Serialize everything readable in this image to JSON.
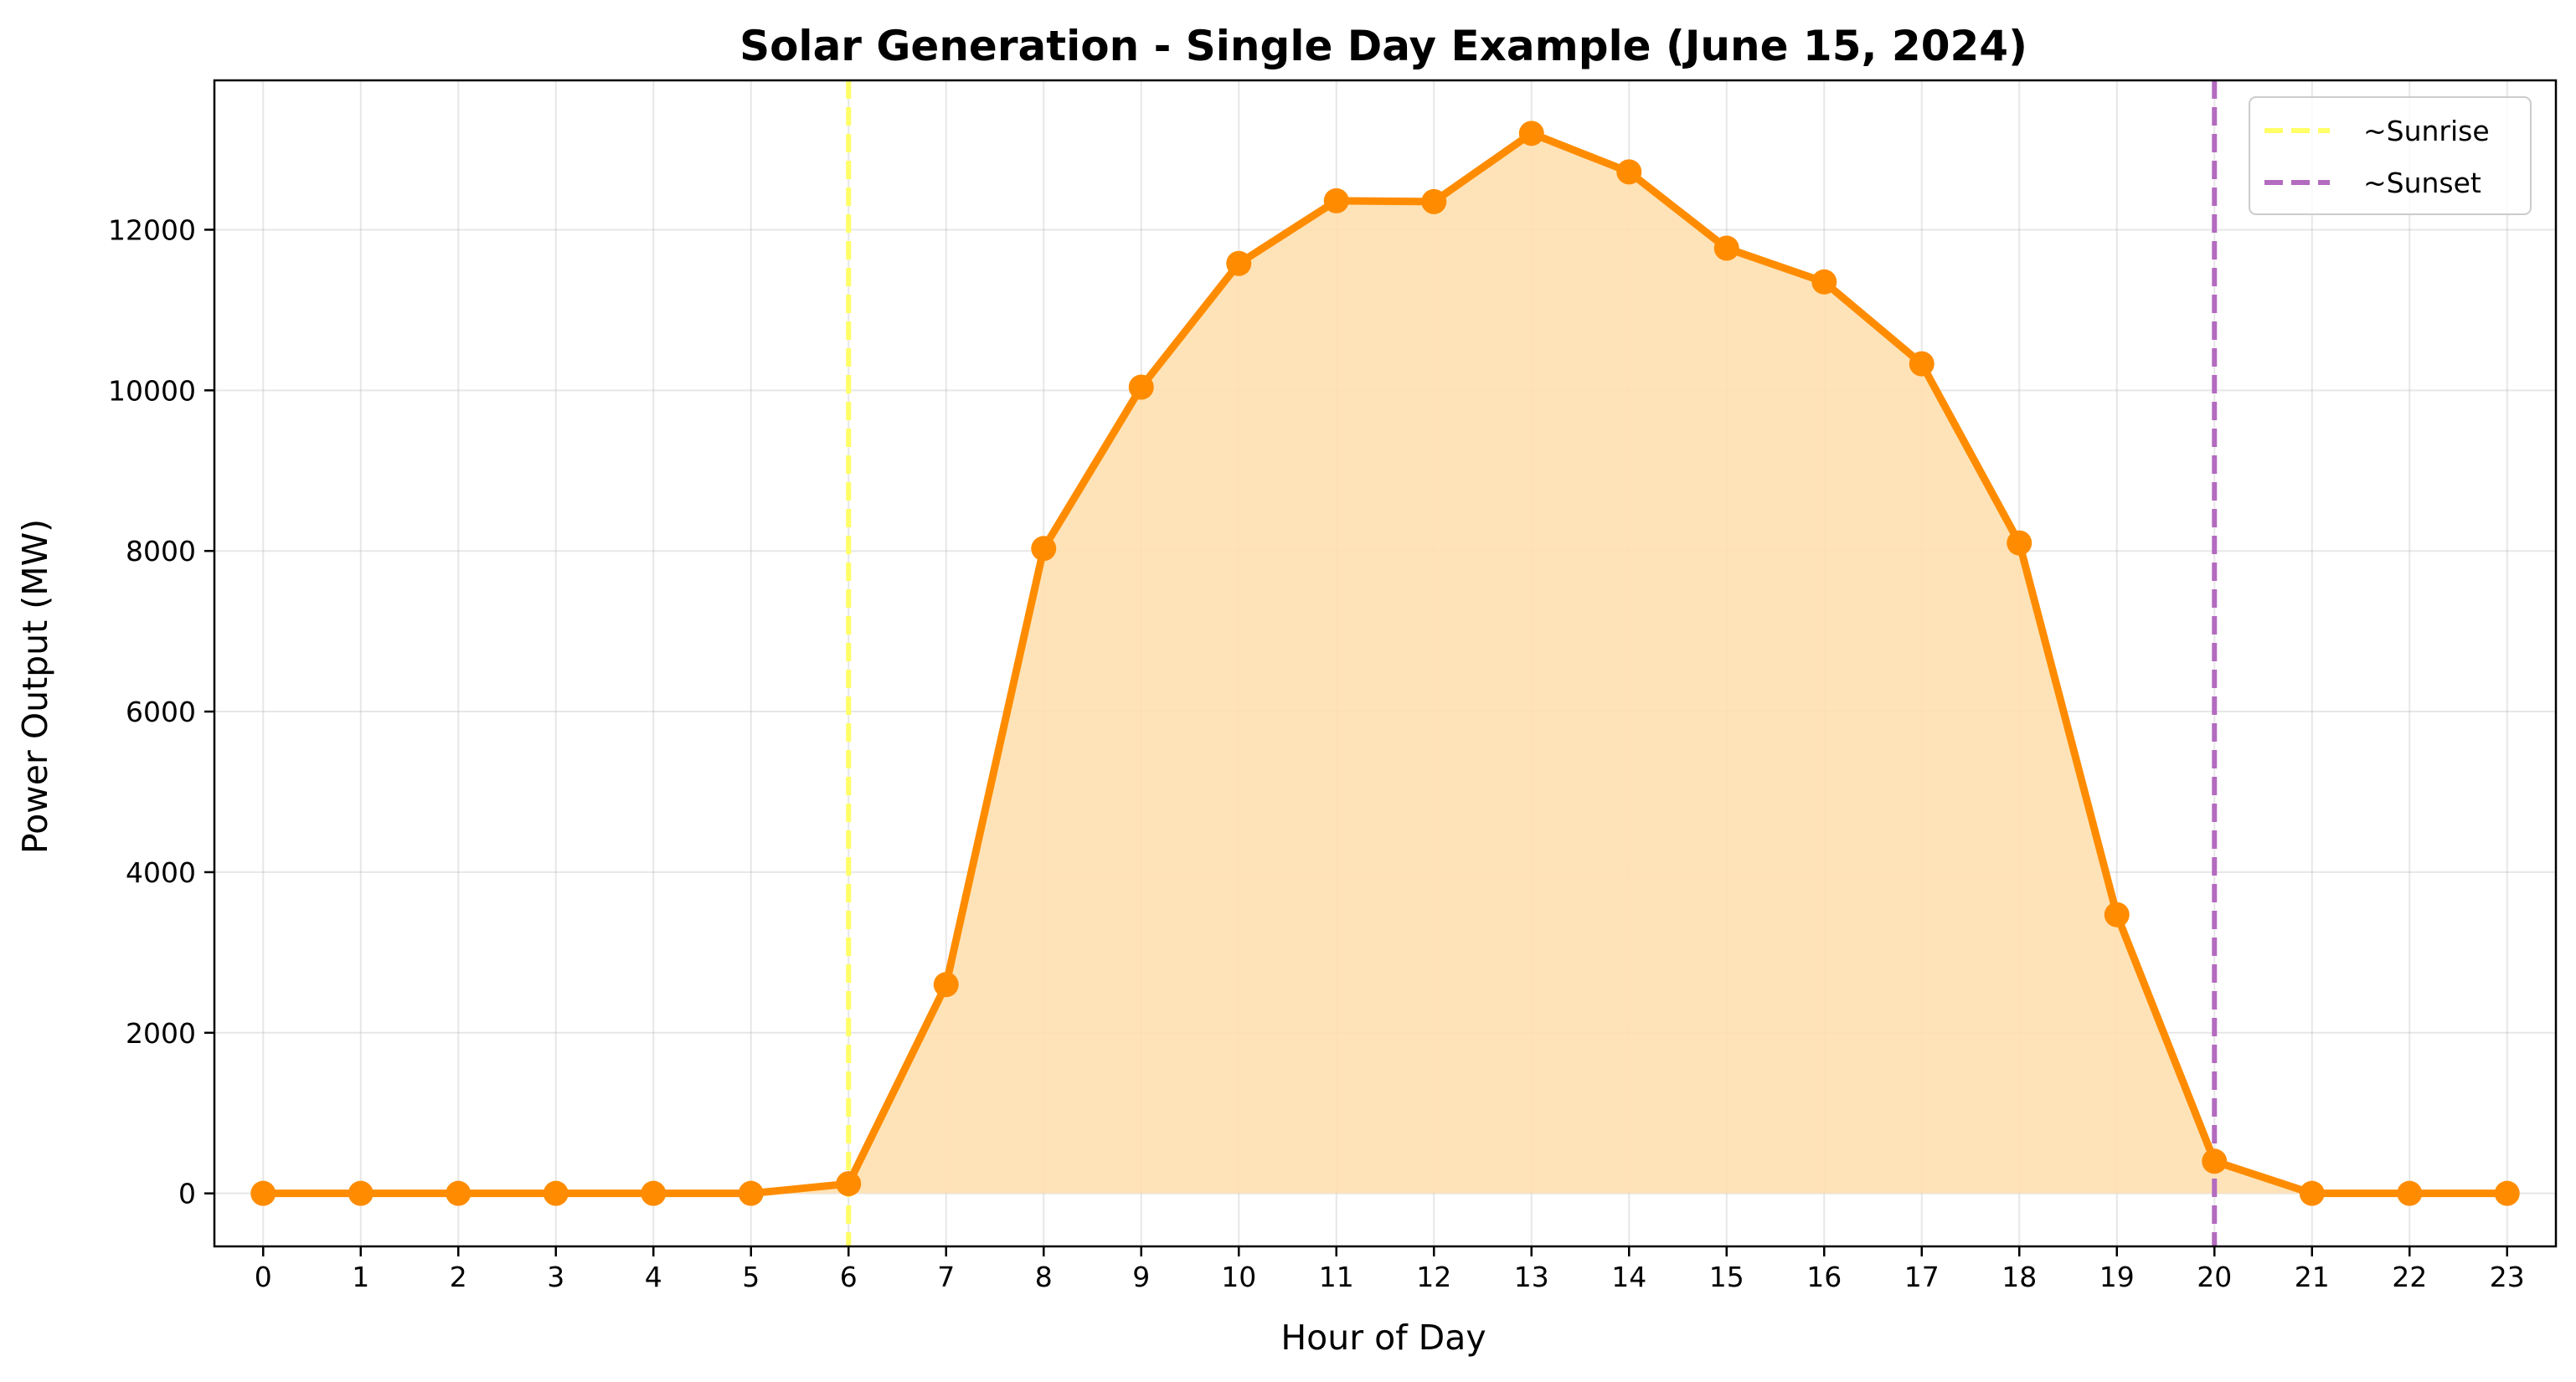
{
  "chart_data": {
    "type": "line",
    "title": "Solar Generation - Single Day Example (June 15, 2024)",
    "xlabel": "Hour of Day",
    "ylabel": "Power Output (MW)",
    "x": [
      0,
      1,
      2,
      3,
      4,
      5,
      6,
      7,
      8,
      9,
      10,
      11,
      12,
      13,
      14,
      15,
      16,
      17,
      18,
      19,
      20,
      21,
      22,
      23
    ],
    "x_ticks": [
      "0",
      "1",
      "2",
      "3",
      "4",
      "5",
      "6",
      "7",
      "8",
      "9",
      "10",
      "11",
      "12",
      "13",
      "14",
      "15",
      "16",
      "17",
      "18",
      "19",
      "20",
      "21",
      "22",
      "23"
    ],
    "y_ticks": [
      0,
      2000,
      4000,
      6000,
      8000,
      10000,
      12000
    ],
    "xlim": [
      -0.5,
      23.5
    ],
    "ylim": [
      -660,
      13860
    ],
    "grid": true,
    "legend_position": "top-right",
    "series": [
      {
        "values": [
          0,
          0,
          0,
          0,
          0,
          0,
          120,
          2600,
          8030,
          10040,
          11580,
          12360,
          12350,
          13200,
          12720,
          11770,
          11350,
          10330,
          8100,
          3470,
          400,
          0,
          0,
          0
        ],
        "color": "#ff8c00",
        "fill_color": "#ffe0b0",
        "marker": "circle"
      }
    ],
    "annotations": [
      {
        "label": "~Sunrise",
        "x": 6,
        "color": "#ffff66",
        "style": "dashed"
      },
      {
        "label": "~Sunset",
        "x": 20,
        "color": "#b36bbf",
        "style": "dashed"
      }
    ]
  }
}
